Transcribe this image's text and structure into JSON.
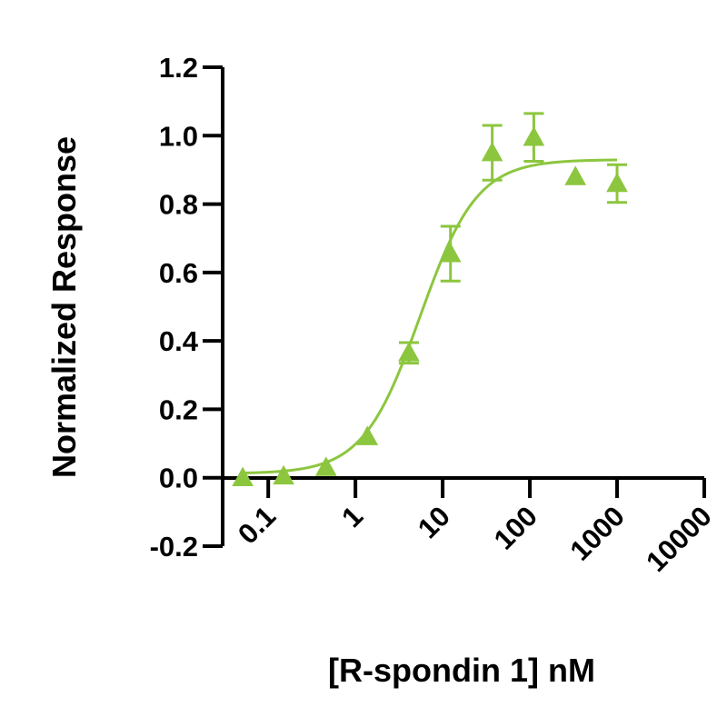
{
  "chart_data": {
    "type": "scatter",
    "xlabel": "[R-spondin 1] nM",
    "ylabel": "Normalized Response",
    "x_scale": "log",
    "xlim": [
      0.03,
      10000
    ],
    "ylim": [
      -0.2,
      1.2
    ],
    "x_ticks": [
      0.1,
      1,
      10,
      100,
      1000,
      10000
    ],
    "x_tick_labels": [
      "0.1",
      "1",
      "10",
      "100",
      "1000",
      "10000"
    ],
    "y_ticks": [
      -0.2,
      0.0,
      0.2,
      0.4,
      0.6,
      0.8,
      1.0,
      1.2
    ],
    "y_tick_labels": [
      "-0.2",
      "0.0",
      "0.2",
      "0.4",
      "0.6",
      "0.8",
      "1.0",
      "1.2"
    ],
    "grid": false,
    "color": "#8cc63f",
    "marker": "triangle",
    "series": [
      {
        "points": [
          {
            "x": 0.051,
            "y": 0.0,
            "err": 0
          },
          {
            "x": 0.15,
            "y": 0.005,
            "err": 0
          },
          {
            "x": 0.46,
            "y": 0.03,
            "err": 0
          },
          {
            "x": 1.37,
            "y": 0.12,
            "err": 0
          },
          {
            "x": 4.1,
            "y": 0.365,
            "err": 0.03
          },
          {
            "x": 12.3,
            "y": 0.655,
            "err": 0.08
          },
          {
            "x": 37,
            "y": 0.95,
            "err": 0.08
          },
          {
            "x": 111,
            "y": 0.995,
            "err": 0.07
          },
          {
            "x": 333,
            "y": 0.88,
            "err": 0
          },
          {
            "x": 1000,
            "y": 0.86,
            "err": 0.055
          }
        ]
      }
    ],
    "fit_curve": {
      "type": "4PL",
      "bottom": 0.012,
      "top": 0.93,
      "ec50": 5.5,
      "hill": 1.33,
      "x_range": [
        0.051,
        1000
      ]
    }
  }
}
